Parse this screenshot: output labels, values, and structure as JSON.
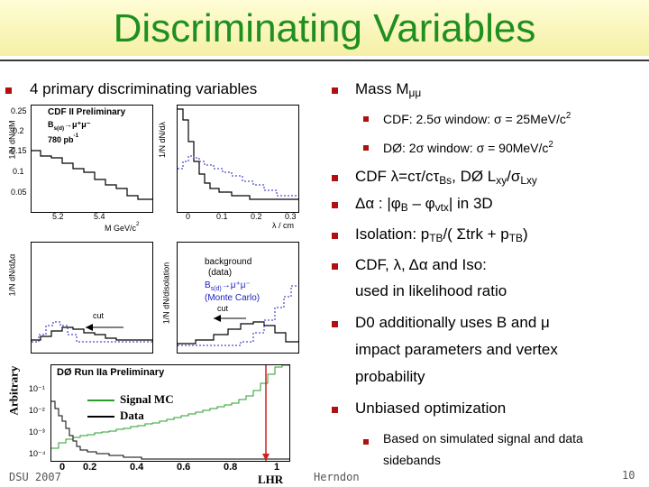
{
  "title": "Discriminating Variables",
  "left_heading": "4 primary discriminating variables",
  "right": {
    "mass": "Mass M",
    "mass_sym": "μμ",
    "cdf_window": "CDF: 2.5σ window: σ = 25MeV/c",
    "d0_window": "DØ: 2σ window: σ = 90MeV/c",
    "sq": "2",
    "lxy_a": "CDF λ=cτ/cτ",
    "lxy_bs": "Bs",
    "lxy_b": ", DØ L",
    "lxy_xy": "xy",
    "lxy_c": "/σ",
    "lxy_lxy": "Lxy",
    "dalpha_a": "Δα : |φ",
    "dalpha_b": "B",
    "dalpha_c": " – φ",
    "dalpha_d": "vtx",
    "dalpha_e": "| in 3D",
    "iso_a": "Isolation: p",
    "iso_tb": "TB",
    "iso_b": "/( Σtrk + p",
    "iso_c": ")",
    "cdf_line1": "CDF, λ, Δα and Iso:",
    "cdf_line2": "used in likelihood ratio",
    "d0_line1": "D0 additionally uses B and μ",
    "d0_line2": "impact parameters and vertex",
    "d0_line3": "probability",
    "unbiased": "Unbiased optimization",
    "based_line1": "Based on simulated signal and data",
    "based_line2": "sidebands"
  },
  "plots": {
    "cdf_prelim": "CDF II Preliminary",
    "bs_decay": "B",
    "bs_sub": "s(d)",
    "bs_arrow": "→μ⁺μ⁻",
    "lumi": "780 pb",
    "lumi_sup": "-1",
    "m_axis": "M",
    "m_unit": " GeV/c",
    "lambda_axis": "λ / cm",
    "tl_y": "1/N dN/dM",
    "tr_y": "1/N dN/dλ",
    "ml_y": "1/N dN/dΔα",
    "mr_y": "1/N dN/disolation",
    "bg_label": "background",
    "bg_sub": "(data)",
    "mc_label_a": "B",
    "mc_label_b": "→μ⁺μ⁻",
    "mc_sub": "(Monte Carlo)",
    "cut": "cut",
    "tl_ticks_x": [
      "5.2",
      "5.4"
    ],
    "tl_ticks_y": [
      "0.25",
      "0.2",
      "0.15",
      "0.1",
      "0.05"
    ],
    "tr_ticks_x": [
      "0",
      "0.1",
      "0.2",
      "0.3"
    ],
    "d0_prelim": "DØ Run IIa Preliminary",
    "signal_mc": "Signal MC",
    "data": "Data",
    "arbitrary": "Arbitrary",
    "lhr": "LHR",
    "d0_ticks_x": [
      "0",
      "0.2",
      "0.4",
      "0.6",
      "0.8",
      "1"
    ],
    "d0_ticks_y": [
      "10⁻¹",
      "10⁻²",
      "10⁻³",
      "10⁻⁴"
    ]
  },
  "footer": {
    "left": "DSU 2007",
    "center": "Herndon",
    "page": "10"
  },
  "colors": {
    "title": "#1f8f1f",
    "bullet": "#b01010",
    "signal_hist": "#2a9d2a",
    "data_hist": "#000000",
    "mc_dashed": "#2020c0",
    "cut_marker": "#d02020"
  }
}
